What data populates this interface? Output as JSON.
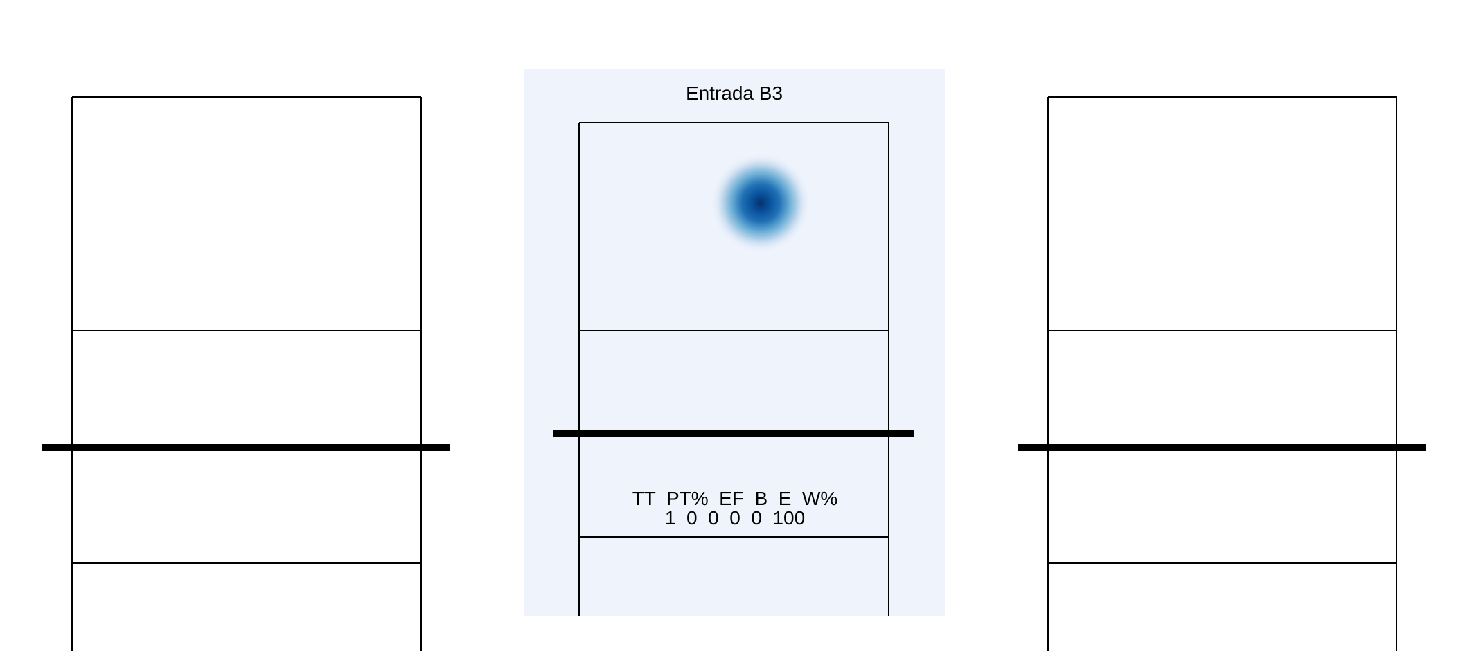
{
  "chart_data": [
    {
      "type": "heatmap",
      "panel": "left",
      "title": "",
      "points": []
    },
    {
      "type": "heatmap",
      "panel": "center",
      "title": "Entrada B3",
      "background_color": "#eef3fc",
      "colormap": "Blues",
      "points": [
        {
          "x": 0.58,
          "y": 0.62,
          "density": 1.0
        }
      ],
      "stats_table": {
        "headers": [
          "TT",
          "PT%",
          "EF",
          "B",
          "E",
          "W%"
        ],
        "values": [
          "1",
          "0",
          "0",
          "0",
          "0",
          "100"
        ]
      }
    },
    {
      "type": "heatmap",
      "panel": "right",
      "title": "",
      "points": []
    }
  ],
  "panel_center": {
    "title": "Entrada B3",
    "stats_header": "TT  PT%  EF  B  E  W%",
    "stats_values": "1  0  0  0  0  100"
  },
  "colors": {
    "line": "#000000",
    "panel_bg": "#eef3fc",
    "density_peak": "#08519c",
    "density_mid": "#6baed6"
  }
}
